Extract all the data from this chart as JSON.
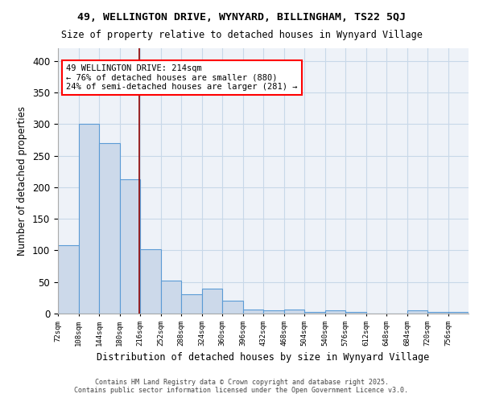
{
  "title1": "49, WELLINGTON DRIVE, WYNYARD, BILLINGHAM, TS22 5QJ",
  "title2": "Size of property relative to detached houses in Wynyard Village",
  "xlabel": "Distribution of detached houses by size in Wynyard Village",
  "ylabel": "Number of detached properties",
  "bin_edges": [
    72,
    108,
    144,
    180,
    216,
    252,
    288,
    324,
    360,
    396,
    432,
    468,
    504,
    540,
    576,
    612,
    648,
    684,
    720,
    756,
    792
  ],
  "bar_heights": [
    108,
    300,
    270,
    212,
    102,
    52,
    30,
    40,
    20,
    7,
    5,
    6,
    2,
    5,
    2,
    0,
    0,
    5,
    3,
    3
  ],
  "bar_color": "#ccd9ea",
  "bar_edge_color": "#5b9bd5",
  "bar_linewidth": 0.8,
  "grid_color": "#c8d8e8",
  "background_color": "#eef2f8",
  "red_line_x": 214,
  "annotation_text": "49 WELLINGTON DRIVE: 214sqm\n← 76% of detached houses are smaller (880)\n24% of semi-detached houses are larger (281) →",
  "ylim": [
    0,
    420
  ],
  "yticks": [
    0,
    50,
    100,
    150,
    200,
    250,
    300,
    350,
    400
  ],
  "footer1": "Contains HM Land Registry data © Crown copyright and database right 2025.",
  "footer2": "Contains public sector information licensed under the Open Government Licence v3.0."
}
